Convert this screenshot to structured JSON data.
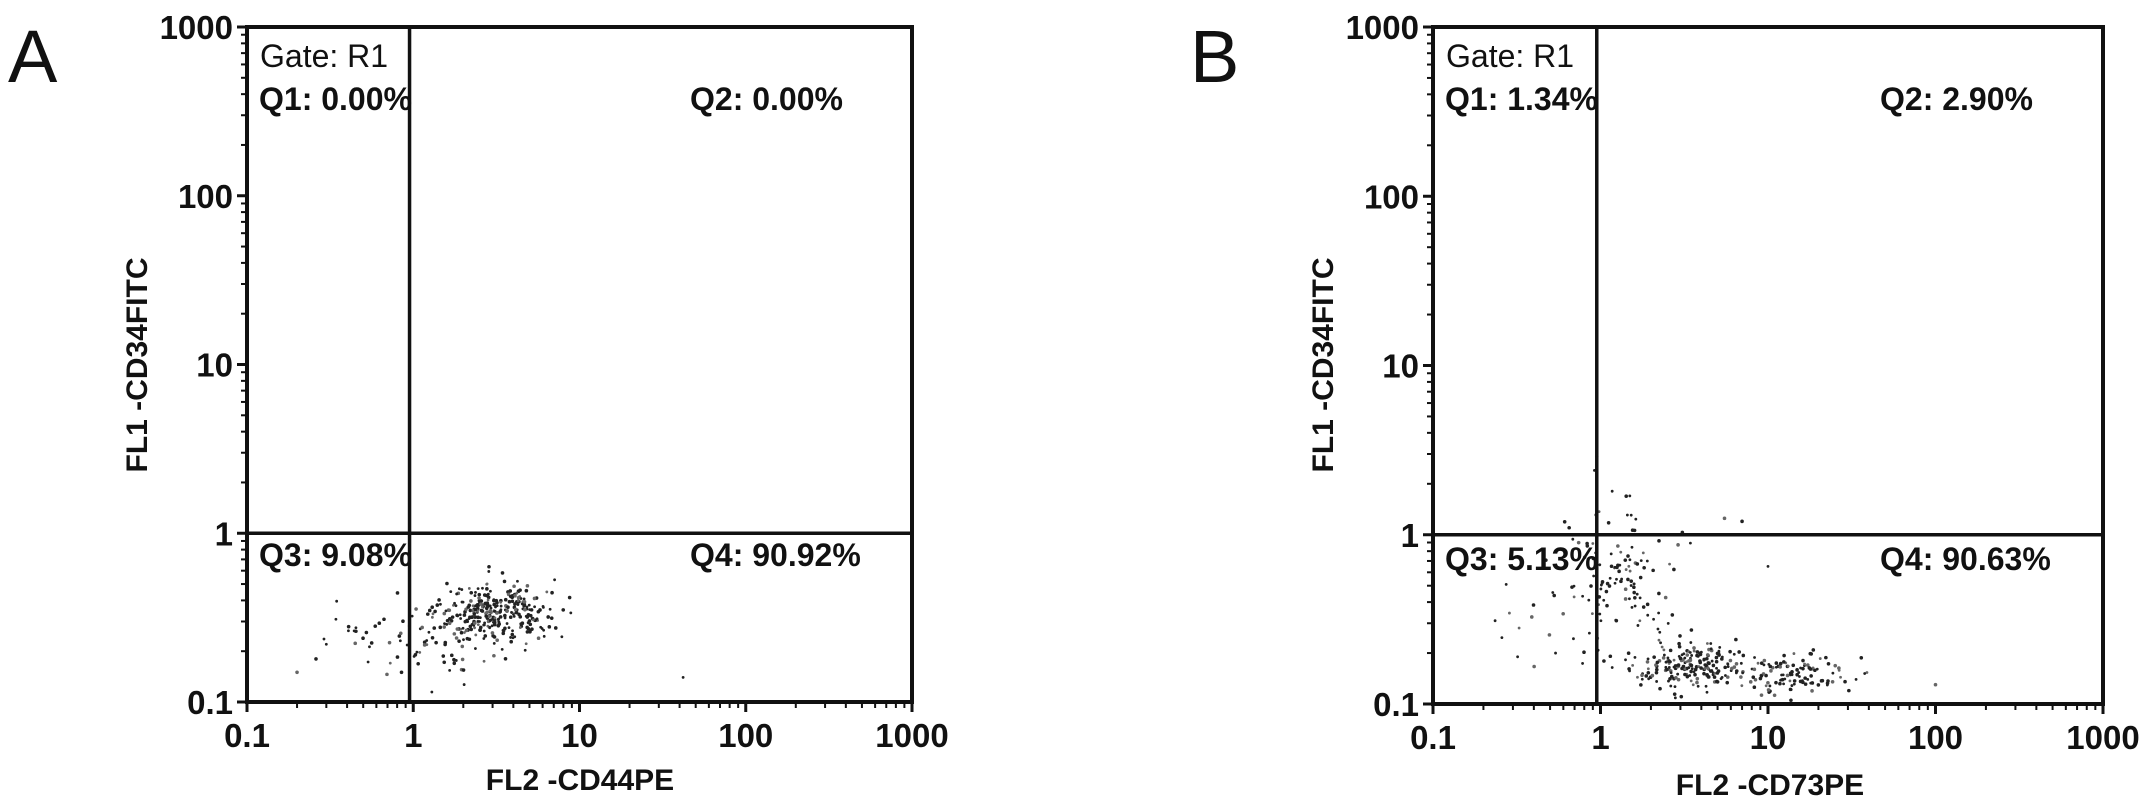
{
  "chart_data": [
    {
      "type": "scatter",
      "panel_label": "A",
      "xlabel": "FL2 -CD44PE",
      "ylabel": "FL1 -CD34FITC",
      "xscale": "log",
      "yscale": "log",
      "xlim": [
        0.1,
        1000
      ],
      "ylim": [
        0.1,
        1000
      ],
      "xticks": [
        "0.1",
        "1",
        "10",
        "100",
        "1000"
      ],
      "yticks": [
        "0.1",
        "1",
        "10",
        "100",
        "1000"
      ],
      "gate": "Gate: R1",
      "quadrant_x": 0.95,
      "quadrant_y": 1.0,
      "quadrants": {
        "q1": "Q1: 0.00%",
        "q2": "Q2: 0.00%",
        "q3": "Q3: 9.08%",
        "q4": "Q4: 90.92%"
      },
      "clusters": [
        {
          "x_center": 3.0,
          "y_center": 0.34,
          "x_spread": 0.17,
          "y_spread": 0.09,
          "n": 320
        },
        {
          "x_center": 1.2,
          "y_center": 0.24,
          "x_spread": 0.26,
          "y_spread": 0.13,
          "n": 70
        }
      ],
      "outliers": [
        [
          0.2,
          0.15
        ],
        [
          0.26,
          0.18
        ],
        [
          0.3,
          0.22
        ],
        [
          42,
          0.14
        ],
        [
          0.85,
          0.15
        ]
      ]
    },
    {
      "type": "scatter",
      "panel_label": "B",
      "xlabel": "FL2 -CD73PE",
      "ylabel": "FL1 -CD34FITC",
      "xscale": "log",
      "yscale": "log",
      "xlim": [
        0.1,
        1000
      ],
      "ylim": [
        0.1,
        1000
      ],
      "xticks": [
        "0.1",
        "1",
        "10",
        "100",
        "1000"
      ],
      "yticks": [
        "0.1",
        "1",
        "10",
        "100",
        "1000"
      ],
      "gate": "Gate: R1",
      "quadrant_x": 0.95,
      "quadrant_y": 1.0,
      "quadrants": {
        "q1": "Q1: 1.34%",
        "q2": "Q2: 2.90%",
        "q3": "Q3: 5.13%",
        "q4": "Q4: 90.63%"
      },
      "clusters": [
        {
          "x_center": 1.3,
          "y_center": 0.55,
          "x_spread": 0.16,
          "y_spread": 0.2,
          "n": 110
        },
        {
          "x_center": 3.5,
          "y_center": 0.17,
          "x_spread": 0.17,
          "y_spread": 0.07,
          "n": 200
        },
        {
          "x_center": 14,
          "y_center": 0.15,
          "x_spread": 0.2,
          "y_spread": 0.06,
          "n": 120
        },
        {
          "x_center": 0.6,
          "y_center": 0.3,
          "x_spread": 0.2,
          "y_spread": 0.2,
          "n": 25
        }
      ],
      "outliers": [
        [
          0.92,
          2.4
        ],
        [
          0.95,
          2.9
        ],
        [
          0.65,
          1.1
        ],
        [
          5.5,
          1.25
        ],
        [
          7,
          1.2
        ],
        [
          100,
          0.13
        ],
        [
          10,
          0.65
        ]
      ]
    }
  ]
}
